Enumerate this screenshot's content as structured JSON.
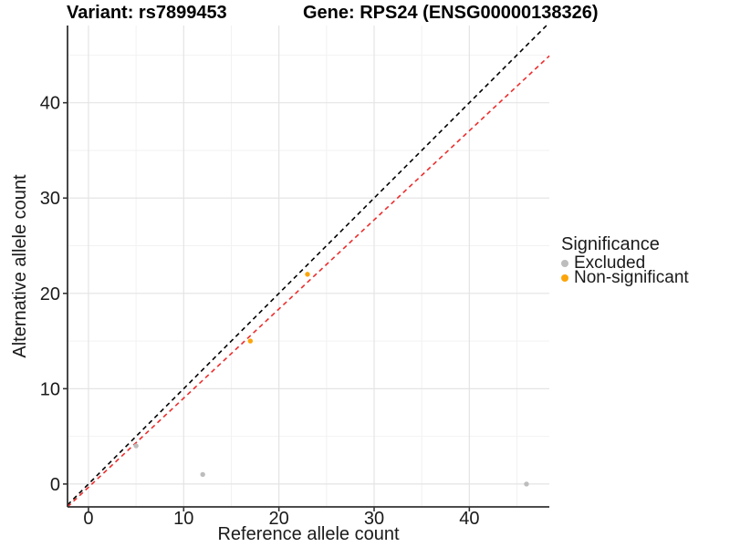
{
  "chart_data": {
    "type": "scatter",
    "title_left": "Variant: rs7899453",
    "title_right": "Gene: RPS24 (ENSG00000138326)",
    "xlabel": "Reference allele count",
    "ylabel": "Alternative allele count",
    "xlim": [
      -2.2,
      48.4
    ],
    "ylim": [
      -2.4,
      48.1
    ],
    "x_major_ticks": [
      0,
      10,
      20,
      30,
      40
    ],
    "x_minor_ticks": [
      5,
      15,
      25,
      35,
      45
    ],
    "y_major_ticks": [
      0,
      10,
      20,
      30,
      40
    ],
    "y_minor_ticks": [
      5,
      15,
      25,
      35,
      45
    ],
    "grid": "major-and-minor",
    "legend": {
      "title": "Significance",
      "position": "right",
      "items": [
        {
          "label": "Excluded",
          "color": "#BDBDBD"
        },
        {
          "label": "Non-significant",
          "color": "#FCA50A"
        }
      ]
    },
    "series": [
      {
        "name": "Excluded",
        "color": "#BDBDBD",
        "points": [
          [
            5,
            4
          ],
          [
            12,
            1
          ],
          [
            46,
            0
          ]
        ]
      },
      {
        "name": "Non-significant",
        "color": "#FCA50A",
        "points": [
          [
            17,
            15
          ],
          [
            23,
            22
          ]
        ]
      }
    ],
    "lines": [
      {
        "name": "identity-line",
        "color": "#000000",
        "style": "dashed",
        "slope": 1.0,
        "intercept": 0.0
      },
      {
        "name": "fit-line",
        "color": "#EE2C2C",
        "style": "dashed",
        "slope": 0.935,
        "intercept": -0.34
      }
    ],
    "colors": {
      "axis": "#333333",
      "tick_label": "#1A1A1A",
      "grid_major": "#E4E4E4",
      "grid_minor": "#F2F2F2",
      "background": "#FFFFFF"
    }
  }
}
